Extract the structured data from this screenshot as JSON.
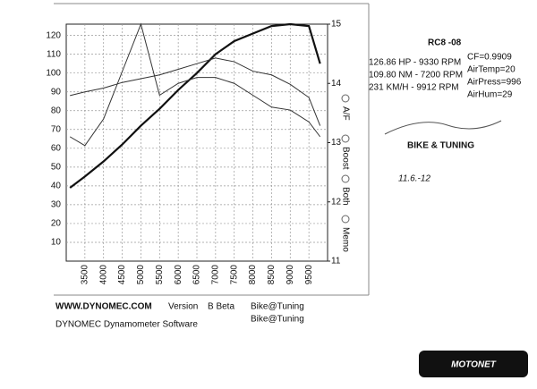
{
  "chart_data": {
    "type": "line",
    "x": [
      3100,
      3500,
      4000,
      4500,
      5000,
      5500,
      6000,
      6500,
      7000,
      7500,
      8000,
      8500,
      9000,
      9500,
      9800
    ],
    "series": [
      {
        "color": "#111111",
        "values": [
          39,
          45,
          53,
          62,
          72,
          81,
          91,
          100,
          110,
          117,
          121,
          125,
          126,
          125,
          105
        ]
      },
      {
        "color": "#333333",
        "values": [
          88,
          90,
          92,
          95,
          97,
          99,
          102,
          105,
          108,
          106,
          101,
          99,
          94,
          87,
          72
        ]
      },
      {
        "color": "#333333",
        "axis": "y2",
        "values": [
          13.1,
          12.95,
          13.4,
          14.2,
          15,
          13.8,
          14.0,
          14.1,
          14.1,
          14.0,
          13.8,
          13.6,
          13.55,
          13.35,
          13.1
        ]
      }
    ],
    "xlim": [
      3000,
      10000
    ],
    "xticks": [
      3500,
      4000,
      4500,
      5000,
      5500,
      6000,
      6500,
      7000,
      7500,
      8000,
      8500,
      9000,
      9500
    ],
    "ylim": [
      0,
      126
    ],
    "yticks": [
      10,
      20,
      30,
      40,
      50,
      60,
      70,
      80,
      90,
      100,
      110,
      120
    ],
    "y2lim": [
      11,
      15
    ],
    "y2ticks": [
      11,
      12,
      13,
      14,
      15
    ],
    "grid": true
  },
  "buttons": [
    "A/F",
    "Boost",
    "Both",
    "Memo"
  ],
  "info": {
    "title": "RC8 -08",
    "lines": [
      "126.86 HP - 9330 RPM",
      "109.80 NM - 7200 RPM",
      "231 KM/H - 9912 RPM"
    ],
    "conditions": [
      "CF=0.9909",
      "AirTemp=20",
      "AirPress=996",
      "AirHum=29"
    ]
  },
  "stamp": {
    "brand": "BIKE & TUNING",
    "date": "11.6.-12"
  },
  "footer": {
    "url": "WWW.DYNOMEC.COM",
    "version_label": "Version",
    "version": "B Beta",
    "user1": "Bike@Tuning",
    "user2": "Bike@Tuning",
    "software": "DYNOMEC Dynamometer Software"
  },
  "logo": "MOTONET"
}
